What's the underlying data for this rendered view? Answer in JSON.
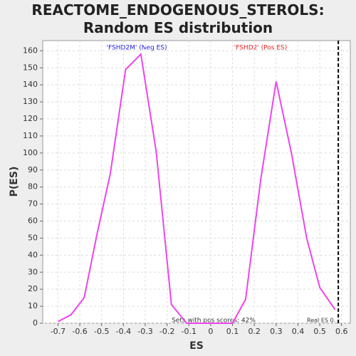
{
  "chart_data": {
    "type": "line",
    "title": "REACTOME_ENDOGENOUS_STEROLS: Random ES distribution",
    "x_label": "ES",
    "y_label": "P(ES)",
    "x": [
      -0.7,
      -0.64,
      -0.58,
      -0.52,
      -0.46,
      -0.39,
      -0.32,
      -0.25,
      -0.18,
      -0.11,
      -0.04,
      0.03,
      0.1,
      0.16,
      0.23,
      0.3,
      0.37,
      0.44,
      0.5,
      0.57
    ],
    "series": [
      {
        "name": "P(ES)",
        "color": "#ee44ee",
        "values": [
          1,
          5,
          15,
          53,
          88,
          149,
          158,
          101,
          11,
          0,
          0,
          0,
          0,
          14,
          85,
          142,
          100,
          50,
          21,
          8
        ]
      }
    ],
    "xlim": [
      -0.77,
      0.64
    ],
    "ylim": [
      0,
      166
    ],
    "xticks": [
      -0.7,
      -0.6,
      -0.5,
      -0.4,
      -0.3,
      -0.2,
      -0.1,
      0,
      0.1,
      0.2,
      0.3,
      0.4,
      0.5,
      0.6
    ],
    "yticks": [
      0,
      10,
      20,
      30,
      40,
      50,
      60,
      70,
      80,
      90,
      100,
      110,
      120,
      130,
      140,
      150,
      160
    ],
    "grid": true,
    "real_es_line": {
      "x": 0.585,
      "label": "Real ES 0."
    },
    "annotations": {
      "neg": "'FSHD2M' (Neg ES)",
      "pos": "'FSHD2' (Pos ES)",
      "sets": "Sets with pos scores: 42%"
    }
  }
}
